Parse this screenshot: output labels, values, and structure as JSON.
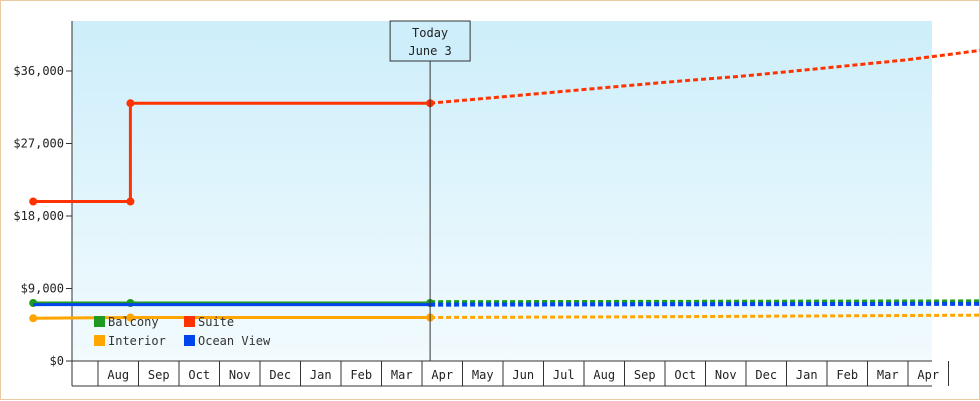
{
  "chart_data": {
    "type": "line",
    "title": "",
    "xlabel": "",
    "ylabel": "",
    "ylim": [
      0,
      36000
    ],
    "y_ticks": [
      "$0",
      "$9,000",
      "$18,000",
      "$27,000",
      "$36,000"
    ],
    "y_tick_values": [
      0,
      9000,
      18000,
      27000,
      36000
    ],
    "x_ticks": [
      "Aug",
      "Sep",
      "Oct",
      "Nov",
      "Dec",
      "Jan",
      "Feb",
      "Mar",
      "Apr",
      "May",
      "Jun",
      "Jul",
      "Aug",
      "Sep",
      "Oct",
      "Nov",
      "Dec",
      "Jan",
      "Feb",
      "Mar",
      "Apr"
    ],
    "today_marker": {
      "line1": "Today",
      "line2": "June 3"
    },
    "legend": [
      {
        "name": "Balcony",
        "color": "#1e9a1e"
      },
      {
        "name": "Suite",
        "color": "#ff3300"
      },
      {
        "name": "Interior",
        "color": "#ffa500"
      },
      {
        "name": "Ocean View",
        "color": "#0044ee"
      }
    ],
    "series": [
      {
        "name": "Suite",
        "color": "#ff3300",
        "history": [
          [
            -1.6,
            19800
          ],
          [
            0.8,
            19800
          ],
          [
            0.8,
            32000
          ],
          [
            8.2,
            32000
          ]
        ],
        "markers": [
          [
            -1.6,
            19800
          ],
          [
            0.8,
            19800
          ],
          [
            0.8,
            32000
          ],
          [
            8.2,
            32000
          ]
        ],
        "forecast": [
          [
            8.2,
            32000
          ],
          [
            10.0,
            32800
          ],
          [
            12.0,
            33700
          ],
          [
            14.0,
            34600
          ],
          [
            16.0,
            35400
          ],
          [
            18.0,
            36400
          ],
          [
            20.0,
            37400
          ],
          [
            22.0,
            38700
          ]
        ]
      },
      {
        "name": "Balcony",
        "color": "#1e9a1e",
        "history": [
          [
            -1.6,
            7200
          ],
          [
            0.8,
            7200
          ],
          [
            8.2,
            7200
          ]
        ],
        "markers": [
          [
            -1.6,
            7200
          ],
          [
            0.8,
            7200
          ],
          [
            8.2,
            7200
          ]
        ],
        "forecast": [
          [
            8.2,
            7300
          ],
          [
            22.0,
            7400
          ]
        ]
      },
      {
        "name": "Ocean View",
        "color": "#0044ee",
        "history": [
          [
            -1.6,
            7000
          ],
          [
            0.8,
            7000
          ],
          [
            8.2,
            7000
          ]
        ],
        "markers": [],
        "forecast": [
          [
            8.2,
            7000
          ],
          [
            22.0,
            7100
          ]
        ]
      },
      {
        "name": "Interior",
        "color": "#ffa500",
        "history": [
          [
            -1.6,
            5300
          ],
          [
            0.8,
            5400
          ],
          [
            8.2,
            5400
          ]
        ],
        "markers": [
          [
            -1.6,
            5300
          ],
          [
            0.8,
            5400
          ],
          [
            8.2,
            5400
          ]
        ],
        "forecast": [
          [
            8.2,
            5400
          ],
          [
            14.0,
            5500
          ],
          [
            22.0,
            5700
          ]
        ]
      }
    ]
  }
}
